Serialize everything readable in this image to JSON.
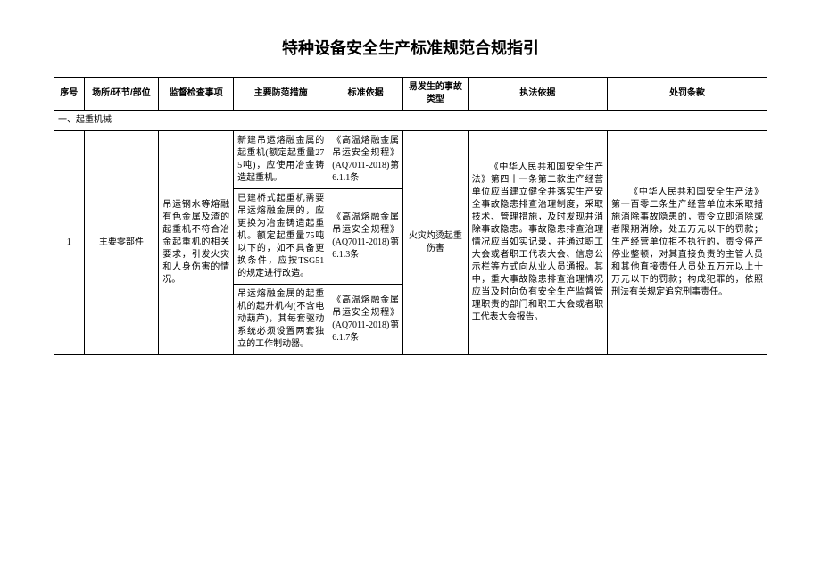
{
  "title": "特种设备安全生产标准规范合规指引",
  "headers": {
    "seq": "序号",
    "place": "场所/环节/部位",
    "inspect": "监督检查事项",
    "prevent": "主要防范措施",
    "standard": "标准依据",
    "accident": "易发生的事故类型",
    "enforce": "执法依据",
    "penalty": "处罚条款"
  },
  "section1": "一、起重机械",
  "row1": {
    "seq": "1",
    "place": "主要零部件",
    "inspect": "吊运钢水等熔融有色金属及渣的起重机不符合冶金起重机的相关要求，引发火灾和人身伤害的情况。",
    "prevent1": "新建吊运熔融金属的起重机(额定起重量275吨)，应使用冶金铸造起重机。",
    "standard1": "《高温熔融金属吊运安全规程》(AQ7011-2018)第6.1.1条",
    "prevent2": "已建桥式起重机需要吊运熔融金属的，应更换为冶金铸造起重机。额定起重量75吨以下的，如不具备更换条件，应按TSG51的规定进行改造。",
    "standard2": "《高温熔融金属吊运安全规程》(AQ7011-2018)第6.1.3条",
    "prevent3": "吊运熔融金属的起重机的起升机构(不含电动葫芦)，其每套驱动系统必须设置两套独立的工作制动器。",
    "standard3": "《高温熔融金属吊运安全规程》(AQ7011-2018)第6.1.7条",
    "accident": "火灾灼烫起重伤害",
    "enforce": "《中华人民共和国安全生产法》第四十一条第二款生产经营单位应当建立健全并落实生产安全事故隐患排查治理制度，采取技术、管理措施，及时发现并消除事故隐患。事故隐患排查治理情况应当如实记录，并通过职工大会或者职工代表大会、信息公示栏等方式向从业人员通报。其中，重大事故隐患排查治理情况应当及时向负有安全生产监督管理职责的部门和职工大会或者职工代表大会报告。",
    "penalty": "《中华人民共和国安全生产法》第一百零二条生产经营单位未采取措施消除事故隐患的，责令立即消除或者限期消除，处五万元以下的罚款；生产经营单位拒不执行的，责令停产停业整顿，对其直接负责的主管人员和其他直接责任人员处五万元以上十万元以下的罚款；构成犯罪的，依照刑法有关规定追究刑事责任。"
  }
}
